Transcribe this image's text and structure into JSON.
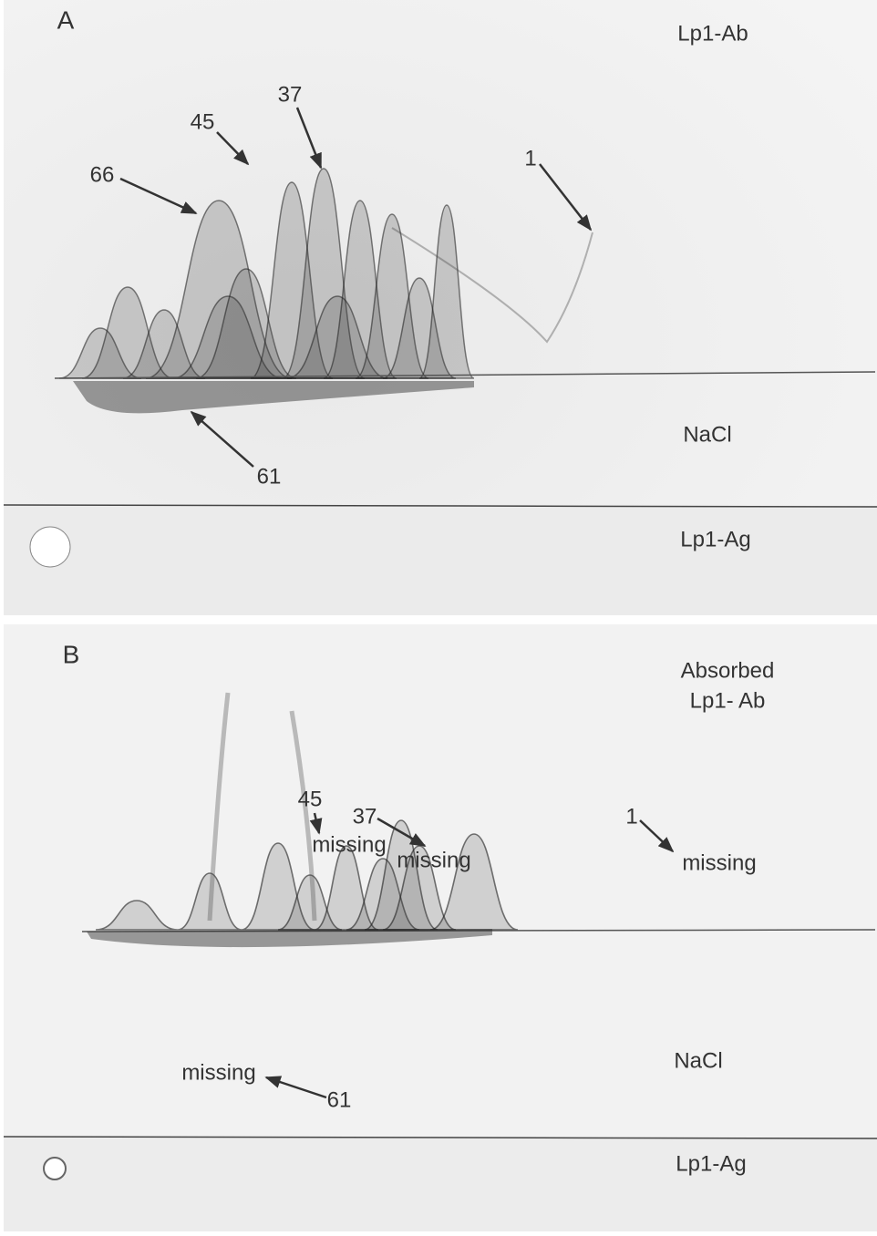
{
  "panels": [
    {
      "label": "A",
      "labels": [
        "Lp1-Ab",
        "45",
        "37",
        "66",
        "1",
        "NaCl",
        "61",
        "Lp1-Ag"
      ]
    },
    {
      "label": "B",
      "labels": [
        "Absorbed",
        "Lp1- Ab",
        "45",
        "missing",
        "37",
        "missing",
        "1",
        "missing",
        "NaCl",
        "missing",
        "61",
        "Lp1-Ag"
      ]
    }
  ]
}
